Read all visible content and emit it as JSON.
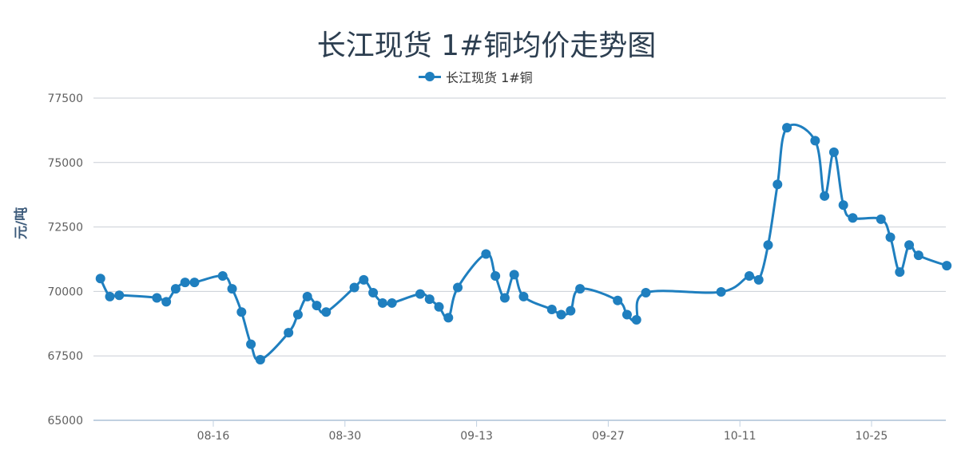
{
  "chart_data": {
    "type": "line",
    "title": "长江现货 1#铜均价走势图",
    "ylabel": "元/吨",
    "xlabel": "",
    "ylim": [
      65000,
      77500
    ],
    "yticks": [
      65000,
      67500,
      70000,
      72500,
      75000,
      77500
    ],
    "xtick_labels": [
      "08-16",
      "08-30",
      "09-13",
      "09-27",
      "10-11",
      "10-25"
    ],
    "grid": true,
    "legend_position": "top-center",
    "series": [
      {
        "name": "长江现货 1#铜",
        "color": "#1f7fbf",
        "x": [
          "08-04",
          "08-05",
          "08-06",
          "08-10",
          "08-11",
          "08-12",
          "08-13",
          "08-14",
          "08-17",
          "08-18",
          "08-19",
          "08-20",
          "08-21",
          "08-24",
          "08-25",
          "08-26",
          "08-27",
          "08-28",
          "08-31",
          "09-01",
          "09-02",
          "09-03",
          "09-04",
          "09-07",
          "09-08",
          "09-09",
          "09-10",
          "09-11",
          "09-14",
          "09-15",
          "09-16",
          "09-17",
          "09-18",
          "09-21",
          "09-22",
          "09-23",
          "09-24",
          "09-28",
          "09-29",
          "09-30",
          "10-01",
          "10-09",
          "10-12",
          "10-13",
          "10-14",
          "10-15",
          "10-16",
          "10-19",
          "10-20",
          "10-21",
          "10-22",
          "10-23",
          "10-26",
          "10-27",
          "10-28",
          "10-29",
          "10-30",
          "11-02"
        ],
        "values": [
          70500,
          69800,
          69850,
          69750,
          69600,
          70100,
          70350,
          70350,
          70600,
          70100,
          69200,
          67950,
          67350,
          68400,
          69100,
          69800,
          69450,
          69200,
          70150,
          70450,
          69950,
          69550,
          69550,
          69900,
          69700,
          69400,
          68980,
          70150,
          71450,
          70600,
          69750,
          70650,
          69800,
          69300,
          69100,
          69250,
          70100,
          69650,
          69100,
          68900,
          69950,
          69980,
          70600,
          70450,
          71800,
          74150,
          76350,
          75850,
          73700,
          75400,
          73350,
          72850,
          72800,
          72100,
          70750,
          71800,
          71400,
          71000
        ]
      }
    ]
  }
}
